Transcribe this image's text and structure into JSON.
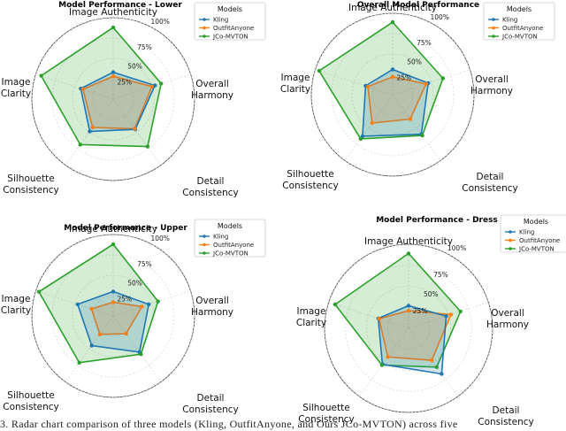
{
  "legend_title": "Models",
  "axes": [
    "Image Authenticity",
    "Overall Harmony",
    "Detail Consistency",
    "Silhouette Consistency",
    "Image Clarity"
  ],
  "radial_ticks": [
    "25%",
    "50%",
    "75%",
    "100%"
  ],
  "colors": {
    "Kling": "#1f77b4",
    "OutfitAnyone": "#ff7f0e",
    "JCo-MVTON": "#2ca02c"
  },
  "caption": "3. Radar chart comparison of three models (Kling, OutfitAnyone, and Ours JCo-MVTON) across five",
  "chart_data": [
    {
      "type": "radar",
      "title": "Model Performance - Lower",
      "categories": [
        "Image Authenticity",
        "Overall Harmony",
        "Detail Consistency",
        "Silhouette Consistency",
        "Image Clarity"
      ],
      "series": [
        {
          "name": "Kling",
          "values": [
            0.33,
            0.54,
            0.46,
            0.49,
            0.42
          ]
        },
        {
          "name": "OutfitAnyone",
          "values": [
            0.28,
            0.5,
            0.45,
            0.43,
            0.39
          ]
        },
        {
          "name": "JCo-MVTON",
          "values": [
            0.88,
            0.62,
            0.72,
            0.69,
            0.93
          ]
        }
      ],
      "rlim": [
        0,
        1
      ]
    },
    {
      "type": "radar",
      "title": "Overall Model Performance",
      "categories": [
        "Image Authenticity",
        "Overall Harmony",
        "Detail Consistency",
        "Silhouette Consistency",
        "Image Clarity"
      ],
      "series": [
        {
          "name": "Kling",
          "values": [
            0.31,
            0.46,
            0.6,
            0.63,
            0.35
          ]
        },
        {
          "name": "OutfitAnyone",
          "values": [
            0.22,
            0.43,
            0.37,
            0.43,
            0.32
          ]
        },
        {
          "name": "JCo-MVTON",
          "values": [
            0.89,
            0.65,
            0.62,
            0.67,
            0.95
          ]
        }
      ],
      "rlim": [
        0,
        1
      ]
    },
    {
      "type": "radar",
      "title": "Model Performance - Upper",
      "categories": [
        "Image Authenticity",
        "Overall Harmony",
        "Detail Consistency",
        "Silhouette Consistency",
        "Image Clarity"
      ],
      "series": [
        {
          "name": "Kling",
          "values": [
            0.3,
            0.46,
            0.55,
            0.45,
            0.46
          ]
        },
        {
          "name": "OutfitAnyone",
          "values": [
            0.17,
            0.37,
            0.27,
            0.28,
            0.28
          ]
        },
        {
          "name": "JCo-MVTON",
          "values": [
            0.88,
            0.58,
            0.58,
            0.71,
            0.96
          ]
        }
      ],
      "rlim": [
        0,
        1
      ]
    },
    {
      "type": "radar",
      "title": "Model Performance - Dress",
      "categories": [
        "Image Authenticity",
        "Overall Harmony",
        "Detail Consistency",
        "Silhouette Consistency",
        "Image Clarity"
      ],
      "series": [
        {
          "name": "Kling",
          "values": [
            0.27,
            0.47,
            0.67,
            0.53,
            0.38
          ]
        },
        {
          "name": "OutfitAnyone",
          "values": [
            0.21,
            0.53,
            0.47,
            0.42,
            0.37
          ]
        },
        {
          "name": "JCo-MVTON",
          "values": [
            0.89,
            0.65,
            0.57,
            0.54,
            0.92
          ]
        }
      ],
      "rlim": [
        0,
        1
      ]
    }
  ]
}
